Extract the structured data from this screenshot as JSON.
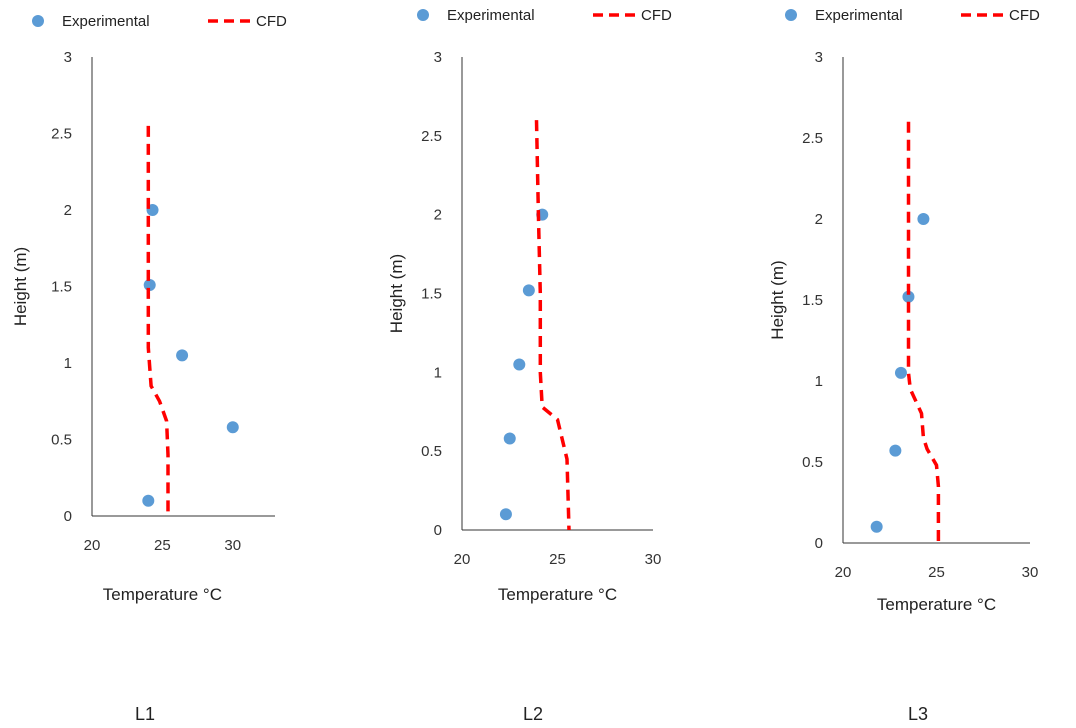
{
  "figure": {
    "panel_titles": [
      "L1",
      "L2",
      "L3"
    ]
  },
  "chart_data": [
    {
      "type": "scatter",
      "title": "L1",
      "xlabel": "Temperature  °C",
      "ylabel": "Height (m)",
      "xlim": [
        20,
        33
      ],
      "ylim": [
        0,
        3
      ],
      "xticks": [
        "20",
        "25",
        "30"
      ],
      "yticks": [
        "0",
        "0.5",
        "1",
        "1.5",
        "2",
        "2.5",
        "3"
      ],
      "grid": false,
      "legend": "top",
      "series": [
        {
          "name": "Experimental",
          "style": "markers",
          "color": "#5b9bd5",
          "points": [
            [
              24.3,
              2.0
            ],
            [
              24.1,
              1.51
            ],
            [
              26.4,
              1.05
            ],
            [
              30.0,
              0.58
            ],
            [
              24.0,
              0.1
            ]
          ]
        },
        {
          "name": "CFD",
          "style": "dashed-line",
          "color": "#ff0000",
          "points": [
            [
              24.0,
              2.55
            ],
            [
              24.0,
              2.0
            ],
            [
              24.0,
              1.5
            ],
            [
              24.0,
              1.1
            ],
            [
              24.2,
              0.85
            ],
            [
              24.8,
              0.75
            ],
            [
              25.3,
              0.62
            ],
            [
              25.4,
              0.4
            ],
            [
              25.4,
              0.0
            ]
          ]
        }
      ]
    },
    {
      "type": "scatter",
      "title": "L2",
      "xlabel": "Temperature  °C",
      "ylabel": "Height (m)",
      "xlim": [
        20,
        30
      ],
      "ylim": [
        0,
        3
      ],
      "xticks": [
        "20",
        "25",
        "30"
      ],
      "yticks": [
        "0",
        "0.5",
        "1",
        "1.5",
        "2",
        "2.5",
        "3"
      ],
      "grid": false,
      "legend": "top",
      "series": [
        {
          "name": "Experimental",
          "style": "markers",
          "color": "#5b9bd5",
          "points": [
            [
              24.2,
              2.0
            ],
            [
              23.5,
              1.52
            ],
            [
              23.0,
              1.05
            ],
            [
              22.5,
              0.58
            ],
            [
              22.3,
              0.1
            ]
          ]
        },
        {
          "name": "CFD",
          "style": "dashed-line",
          "color": "#ff0000",
          "points": [
            [
              23.9,
              2.6
            ],
            [
              24.0,
              2.0
            ],
            [
              24.1,
              1.5
            ],
            [
              24.1,
              1.0
            ],
            [
              24.2,
              0.78
            ],
            [
              25.0,
              0.7
            ],
            [
              25.3,
              0.55
            ],
            [
              25.5,
              0.45
            ],
            [
              25.6,
              0.0
            ]
          ]
        }
      ]
    },
    {
      "type": "scatter",
      "title": "L3",
      "xlabel": "Temperature  °C",
      "ylabel": "Height (m)",
      "xlim": [
        20,
        30
      ],
      "ylim": [
        0,
        3
      ],
      "xticks": [
        "20",
        "25",
        "30"
      ],
      "yticks": [
        "0",
        "0.5",
        "1",
        "1.5",
        "2",
        "2.5",
        "3"
      ],
      "grid": false,
      "legend": "top",
      "series": [
        {
          "name": "Experimental",
          "style": "markers",
          "color": "#5b9bd5",
          "points": [
            [
              24.3,
              2.0
            ],
            [
              23.5,
              1.52
            ],
            [
              23.1,
              1.05
            ],
            [
              22.8,
              0.57
            ],
            [
              21.8,
              0.1
            ]
          ]
        },
        {
          "name": "CFD",
          "style": "dashed-line",
          "color": "#ff0000",
          "points": [
            [
              23.5,
              2.6
            ],
            [
              23.5,
              2.0
            ],
            [
              23.5,
              1.5
            ],
            [
              23.5,
              1.05
            ],
            [
              23.6,
              0.95
            ],
            [
              24.2,
              0.8
            ],
            [
              24.3,
              0.65
            ],
            [
              24.5,
              0.58
            ],
            [
              25.0,
              0.48
            ],
            [
              25.1,
              0.35
            ],
            [
              25.1,
              0.0
            ]
          ]
        }
      ]
    }
  ]
}
